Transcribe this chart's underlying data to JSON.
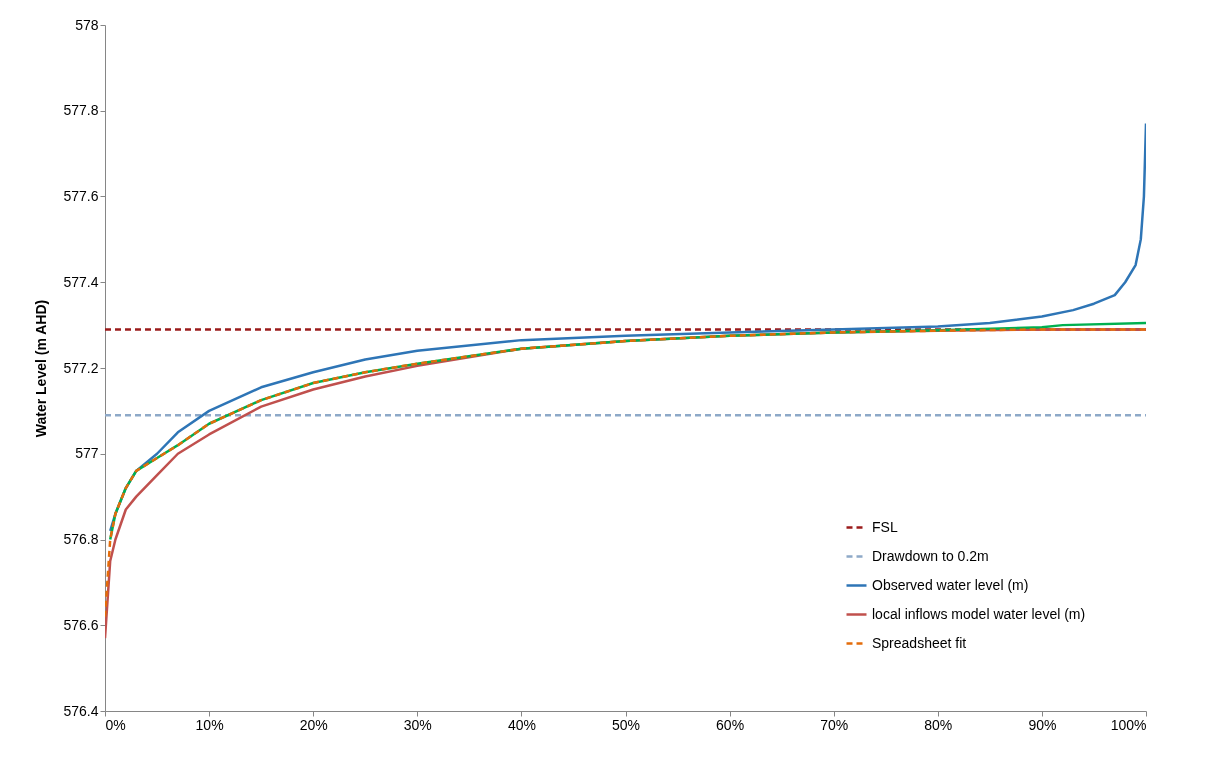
{
  "chart_data": {
    "type": "line",
    "ylabel": "Water Level (m AHD)",
    "xlim": [
      0,
      100
    ],
    "xticks": [
      {
        "value": 0,
        "label": "0%"
      },
      {
        "value": 10,
        "label": "10%"
      },
      {
        "value": 20,
        "label": "20%"
      },
      {
        "value": 30,
        "label": "30%"
      },
      {
        "value": 40,
        "label": "40%"
      },
      {
        "value": 50,
        "label": "50%"
      },
      {
        "value": 60,
        "label": "60%"
      },
      {
        "value": 70,
        "label": "70%"
      },
      {
        "value": 80,
        "label": "80%"
      },
      {
        "value": 90,
        "label": "90%"
      },
      {
        "value": 100,
        "label": "100%"
      }
    ],
    "ylim": [
      576.4,
      578
    ],
    "yticks": [
      576.4,
      576.6,
      576.8,
      577,
      577.2,
      577.4,
      577.6,
      577.8,
      578
    ],
    "legend": "bottom right",
    "series": [
      {
        "name": "FSL",
        "color": "#9b1b1b",
        "line_style": "dashed",
        "x": [
          0,
          100
        ],
        "values": [
          577.29,
          577.29
        ]
      },
      {
        "name": "Drawdown to 0.2m",
        "color": "#8ea9c8",
        "line_style": "dashed",
        "x": [
          0,
          100
        ],
        "values": [
          577.09,
          577.09
        ]
      },
      {
        "name": "Observed water level (m)",
        "color": "#2e75b6",
        "line_style": "solid",
        "x": [
          0.5,
          1,
          2,
          3,
          5,
          7,
          10,
          15,
          20,
          25,
          30,
          40,
          50,
          60,
          70,
          80,
          85,
          90,
          93,
          95,
          97,
          98,
          99,
          99.5,
          99.8,
          100
        ],
        "values": [
          576.82,
          576.86,
          576.92,
          576.96,
          577.0,
          577.05,
          577.1,
          577.155,
          577.19,
          577.22,
          577.24,
          577.265,
          577.275,
          577.283,
          577.29,
          577.297,
          577.305,
          577.32,
          577.335,
          577.35,
          577.37,
          577.4,
          577.44,
          577.5,
          577.6,
          577.77
        ]
      },
      {
        "name": "local inflows model water level (m)",
        "color": "#c0504d",
        "line_style": "solid",
        "x": [
          0,
          0.5,
          1,
          2,
          3,
          5,
          7,
          10,
          15,
          20,
          25,
          30,
          40,
          50,
          60,
          70,
          80,
          90,
          100
        ],
        "values": [
          576.57,
          576.75,
          576.8,
          576.87,
          576.9,
          576.95,
          577.0,
          577.045,
          577.11,
          577.15,
          577.18,
          577.205,
          577.245,
          577.263,
          577.275,
          577.283,
          577.287,
          577.29,
          577.29
        ]
      },
      {
        "color": "#00b050",
        "line_style": "solid",
        "x": [
          0.5,
          1,
          2,
          3,
          5,
          7,
          10,
          15,
          20,
          25,
          30,
          40,
          50,
          60,
          70,
          80,
          90,
          92,
          100
        ],
        "values": [
          576.8,
          576.86,
          576.92,
          576.96,
          576.99,
          577.02,
          577.07,
          577.125,
          577.165,
          577.19,
          577.21,
          577.245,
          577.263,
          577.275,
          577.283,
          577.288,
          577.295,
          577.3,
          577.305
        ]
      },
      {
        "name": "Spreadsheet fit",
        "color": "#e46c0a",
        "line_style": "dashed",
        "x": [
          0,
          0.5,
          1,
          2,
          3,
          5,
          7,
          10,
          15,
          20,
          25,
          30,
          40,
          50,
          60,
          70,
          80,
          90,
          100
        ],
        "values": [
          576.62,
          576.8,
          576.86,
          576.92,
          576.96,
          576.99,
          577.02,
          577.07,
          577.125,
          577.165,
          577.19,
          577.21,
          577.245,
          577.263,
          577.275,
          577.283,
          577.287,
          577.29,
          577.29
        ]
      }
    ]
  }
}
